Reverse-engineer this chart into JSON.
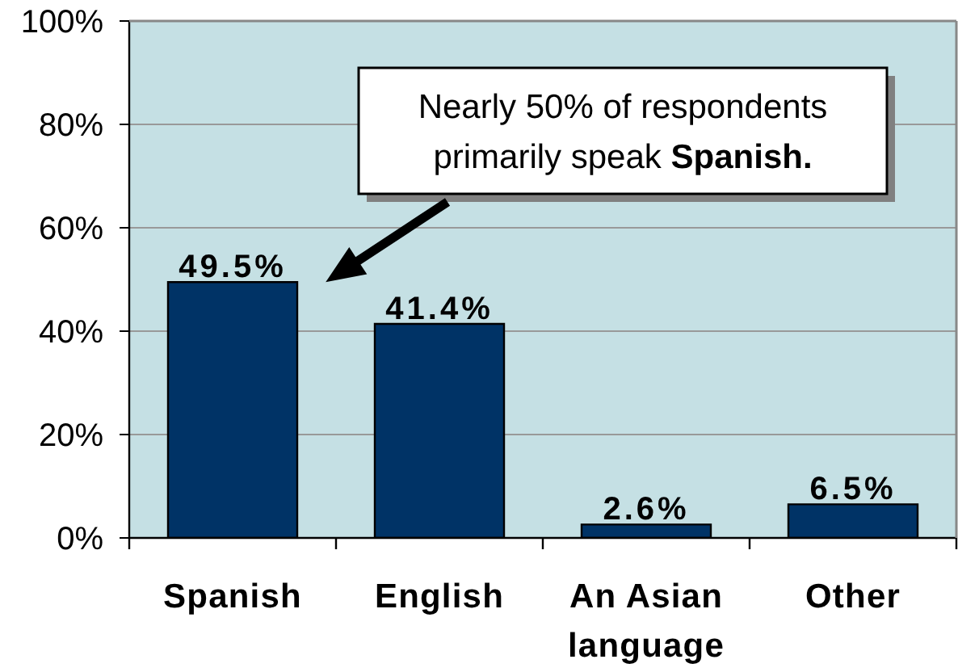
{
  "chart_data": {
    "type": "bar",
    "categories": [
      "Spanish",
      "English",
      "An Asian language",
      "Other"
    ],
    "values": [
      49.5,
      41.4,
      2.6,
      6.5
    ],
    "value_labels": [
      "49.5%",
      "41.4%",
      "2.6%",
      "6.5%"
    ],
    "color": "#003366",
    "ylim": [
      0,
      100
    ],
    "yticks": [
      {
        "value": 0,
        "label": "0%"
      },
      {
        "value": 20,
        "label": "20%"
      },
      {
        "value": 40,
        "label": "40%"
      },
      {
        "value": 60,
        "label": "60%"
      },
      {
        "value": 80,
        "label": "80%"
      },
      {
        "value": 100,
        "label": "100%"
      }
    ],
    "grid": "y",
    "annotations": [
      "Nearly 50% of respondents primarily speak Spanish."
    ]
  }
}
